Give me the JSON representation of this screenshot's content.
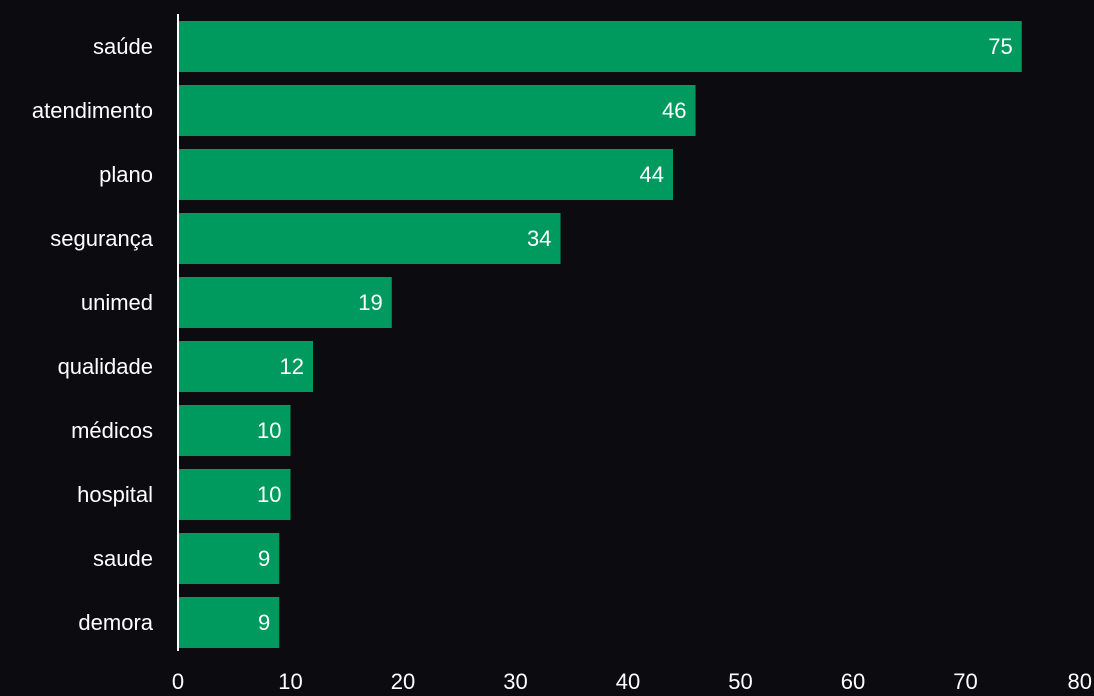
{
  "chart_data": {
    "type": "bar",
    "orientation": "horizontal",
    "categories": [
      "saúde",
      "atendimento",
      "plano",
      "segurança",
      "unimed",
      "qualidade",
      "médicos",
      "hospital",
      "saude",
      "demora"
    ],
    "values": [
      75,
      46,
      44,
      34,
      19,
      12,
      10,
      10,
      9,
      9
    ],
    "title": "",
    "xlabel": "",
    "ylabel": "",
    "xlim": [
      0,
      80
    ],
    "xticks": [
      0,
      10,
      20,
      30,
      40,
      50,
      60,
      70,
      80
    ],
    "grid": false,
    "legend": "none",
    "colors": {
      "background": "#0c0c10",
      "bar": "#009a5e",
      "text": "#ffffff",
      "axis": "#ffffff"
    }
  }
}
